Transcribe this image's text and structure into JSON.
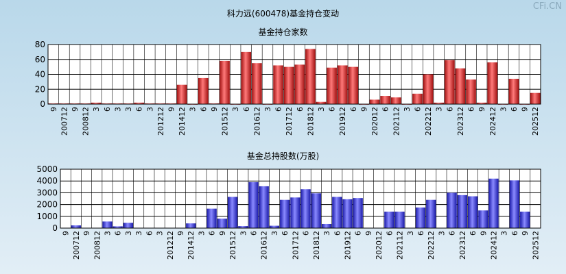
{
  "page": {
    "title": "科力远(600478)基金持仓变动",
    "watermark": "CFi.CN"
  },
  "chart_data": [
    {
      "type": "bar",
      "title": "基金持仓家数",
      "ylim": [
        0,
        80
      ],
      "yticks": [
        0,
        20,
        40,
        60,
        80
      ],
      "grid": true,
      "categories": [
        "9",
        "200712",
        "9",
        "200812",
        "3",
        "6",
        "3",
        "3",
        "6",
        "3",
        "201212",
        "9",
        "201412",
        "3",
        "6",
        "9",
        "201512",
        "3",
        "6",
        "201612",
        "3",
        "6",
        "201712",
        "6",
        "201812",
        "3",
        "6",
        "201912",
        "6",
        "9",
        "202012",
        "6",
        "202112",
        "3",
        "6",
        "202212",
        "3",
        "6",
        "202312",
        "6",
        "9",
        "202412",
        "3",
        "6",
        "9",
        "202512"
      ],
      "values": [
        1,
        1,
        1,
        1,
        2,
        1,
        1,
        1,
        2,
        1,
        1,
        1,
        26,
        0,
        35,
        1,
        58,
        0,
        70,
        55,
        0,
        52,
        50,
        53,
        74,
        3,
        49,
        52,
        50,
        0,
        6,
        11,
        9,
        0,
        14,
        40,
        2,
        59,
        48,
        33,
        2,
        56,
        0,
        34,
        0,
        15
      ],
      "color": "#ee3333"
    },
    {
      "type": "bar",
      "title": "基金总持股数(万股)",
      "ylim": [
        0,
        5000
      ],
      "yticks": [
        0,
        1000,
        2000,
        3000,
        4000,
        5000
      ],
      "grid": true,
      "categories": [
        "9",
        "200712",
        "9",
        "200812",
        "3",
        "6",
        "3",
        "3",
        "6",
        "3",
        "201212",
        "9",
        "201412",
        "3",
        "6",
        "9",
        "201512",
        "3",
        "6",
        "201612",
        "3",
        "6",
        "201712",
        "6",
        "201812",
        "3",
        "6",
        "201912",
        "6",
        "9",
        "202012",
        "6",
        "202112",
        "3",
        "6",
        "202212",
        "3",
        "6",
        "202312",
        "6",
        "9",
        "202412",
        "3",
        "6",
        "9",
        "202512"
      ],
      "values": [
        30,
        230,
        30,
        30,
        560,
        150,
        450,
        30,
        30,
        30,
        30,
        30,
        400,
        30,
        1650,
        800,
        2650,
        170,
        3900,
        3550,
        200,
        2400,
        2600,
        3300,
        2950,
        350,
        2650,
        2450,
        2550,
        30,
        30,
        1400,
        1400,
        30,
        1750,
        2400,
        30,
        3000,
        2800,
        2700,
        1500,
        4200,
        30,
        4050,
        1400,
        30
      ],
      "color": "#3333ee"
    }
  ]
}
